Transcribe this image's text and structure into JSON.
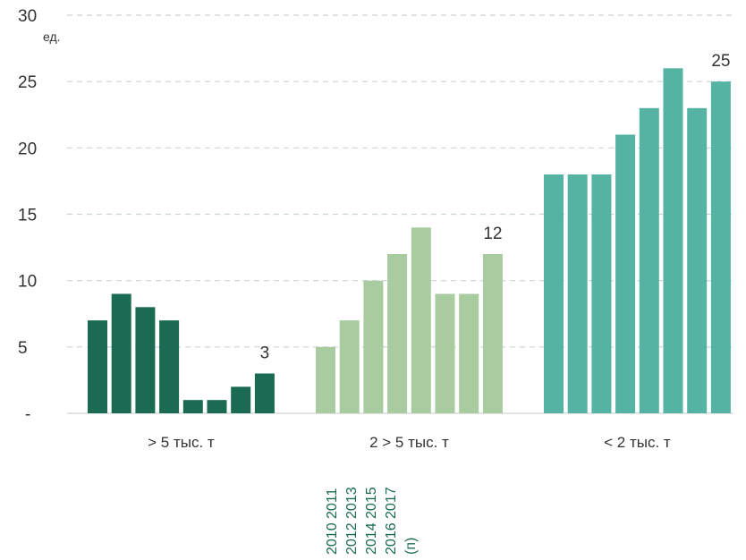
{
  "chart_data": {
    "type": "bar",
    "unit_label": "ед.",
    "ylim": [
      0,
      30
    ],
    "y_ticks": [
      {
        "value": 0,
        "label": "-"
      },
      {
        "value": 5,
        "label": "5"
      },
      {
        "value": 10,
        "label": "10"
      },
      {
        "value": 15,
        "label": "15"
      },
      {
        "value": 20,
        "label": "20"
      },
      {
        "value": 25,
        "label": "25"
      },
      {
        "value": 30,
        "label": "30"
      }
    ],
    "grid": true,
    "categories": [
      "> 5 тыс. т",
      "2 > 5 тыс. т",
      "< 2 тыс. т"
    ],
    "years": [
      "2010",
      "2011",
      "2012",
      "2013",
      "2014",
      "2015",
      "2016",
      "2017 (п)"
    ],
    "groups": [
      {
        "category": "> 5 тыс. т",
        "color": "#1a6b52",
        "values": [
          7,
          9,
          8,
          7,
          1,
          1,
          2,
          3
        ],
        "last_label": "3"
      },
      {
        "category": "2 > 5 тыс. т",
        "color": "#a8cba0",
        "values": [
          5,
          7,
          10,
          12,
          14,
          9,
          9,
          12
        ],
        "last_label": "12"
      },
      {
        "category": "< 2 тыс. т",
        "color": "#55b3a3",
        "values": [
          18,
          18,
          18,
          21,
          23,
          26,
          23,
          25
        ],
        "last_label": "25"
      }
    ],
    "legend_lines": [
      "2010 2011",
      "2012 2013",
      "2014 2015",
      "2016 2017",
      "(п)"
    ],
    "legend_color": "#1b6b50"
  }
}
